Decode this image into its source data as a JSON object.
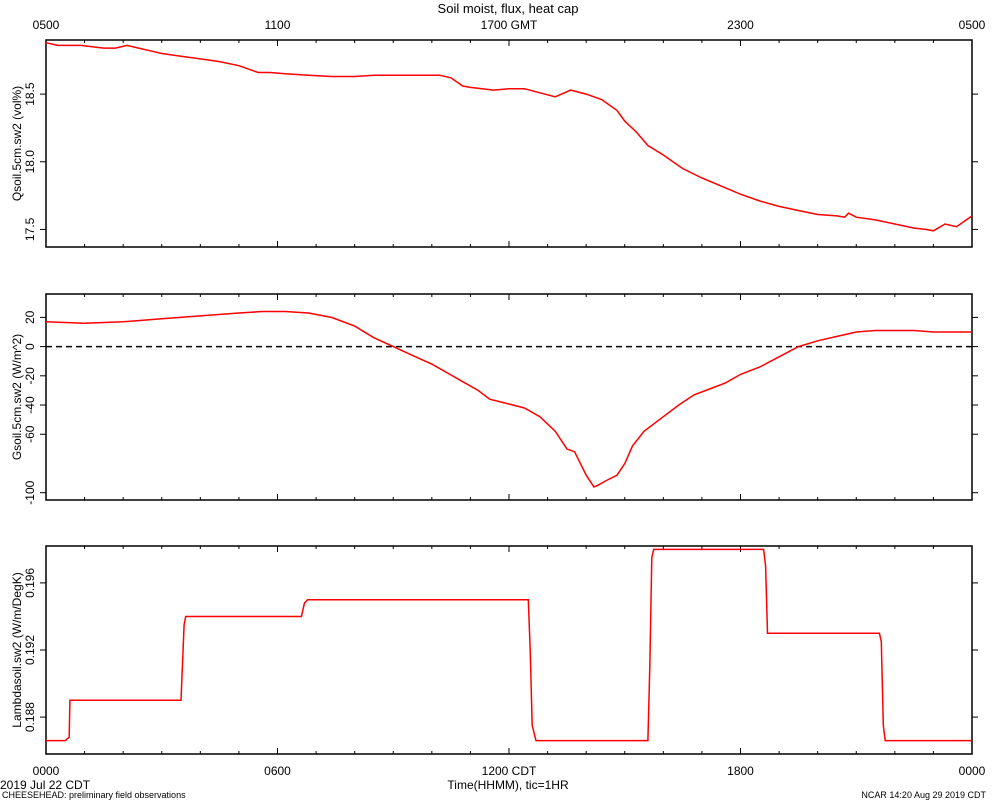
{
  "header": {
    "title": "Soil moist, flux, heat cap",
    "top_ticks": [
      "0500",
      "1100",
      "1700 GMT",
      "2300",
      "0500"
    ]
  },
  "footer": {
    "xlabel": "Time(HHMM), tic=1HR",
    "date": "2019 Jul 22 CDT",
    "project": "CHEESEHEAD: preliminary field observations",
    "credit": "NCAR 14:20 Aug 29 2019 CDT",
    "bottom_ticks": [
      "0000",
      "0600",
      "1200 CDT",
      "1800",
      "0000"
    ]
  },
  "colors": {
    "series": "#ff0000",
    "zero_line": "#000000"
  },
  "chart_data": [
    {
      "type": "line",
      "ylabel": "Qsoil.5cm.sw2 (vol%)",
      "xlim": [
        0,
        24
      ],
      "ylim": [
        17.37,
        18.9
      ],
      "yticks": [
        17.5,
        18.0,
        18.5
      ],
      "ytick_labels": [
        "17.5",
        "18.0",
        "18.5"
      ],
      "series": [
        {
          "x": [
            0,
            0.3,
            0.6,
            0.9,
            1.2,
            1.5,
            1.8,
            2.1,
            2.4,
            2.7,
            3.0,
            3.5,
            4.0,
            4.5,
            5.0,
            5.5,
            5.8,
            6.2,
            6.8,
            7.4,
            8.0,
            8.5,
            9.0,
            9.6,
            10.2,
            10.5,
            10.8,
            11.0,
            11.3,
            11.6,
            12.0,
            12.4,
            12.8,
            13.2,
            13.6,
            14.0,
            14.4,
            14.8,
            15.0,
            15.3,
            15.6,
            16.0,
            16.5,
            17.0,
            17.5,
            18.0,
            18.5,
            19.0,
            19.5,
            20.0,
            20.5,
            20.7,
            20.8,
            21.0,
            21.5,
            22.0,
            22.5,
            22.8,
            23.0,
            23.3,
            23.6,
            24.0
          ],
          "y": [
            18.88,
            18.86,
            18.86,
            18.86,
            18.85,
            18.84,
            18.84,
            18.86,
            18.84,
            18.82,
            18.8,
            18.78,
            18.76,
            18.74,
            18.71,
            18.66,
            18.66,
            18.65,
            18.64,
            18.63,
            18.63,
            18.64,
            18.64,
            18.64,
            18.64,
            18.62,
            18.56,
            18.55,
            18.54,
            18.53,
            18.54,
            18.54,
            18.51,
            18.48,
            18.53,
            18.5,
            18.46,
            18.38,
            18.3,
            18.22,
            18.12,
            18.05,
            17.95,
            17.88,
            17.82,
            17.76,
            17.71,
            17.67,
            17.64,
            17.61,
            17.6,
            17.59,
            17.62,
            17.59,
            17.57,
            17.54,
            17.51,
            17.5,
            17.49,
            17.54,
            17.52,
            17.6
          ]
        }
      ]
    },
    {
      "type": "line",
      "ylabel": "Gsoil.5cm.sw2 (W/m^2)",
      "xlim": [
        0,
        24
      ],
      "ylim": [
        -105,
        36
      ],
      "yticks": [
        -100,
        -60,
        -40,
        -20,
        0,
        20
      ],
      "ytick_labels": [
        "-100",
        "-60",
        "-40",
        "-20",
        "0",
        "20"
      ],
      "zero_line": true,
      "series": [
        {
          "x": [
            0,
            1,
            2,
            3,
            4,
            5,
            5.6,
            6.2,
            6.8,
            7.4,
            8.0,
            8.5,
            9.0,
            9.5,
            10.0,
            10.4,
            10.8,
            11.2,
            11.5,
            11.8,
            12.1,
            12.4,
            12.8,
            13.2,
            13.5,
            13.7,
            14.0,
            14.2,
            14.3,
            14.5,
            14.8,
            15.0,
            15.2,
            15.5,
            16.0,
            16.4,
            16.8,
            17.2,
            17.6,
            18.0,
            18.5,
            19.0,
            19.5,
            20.0,
            20.5,
            21.0,
            21.5,
            22.0,
            22.5,
            23.0,
            24.0
          ],
          "y": [
            17,
            16,
            17,
            19,
            21,
            23,
            24,
            24,
            23,
            20,
            14,
            6,
            0,
            -6,
            -12,
            -18,
            -24,
            -30,
            -36,
            -38,
            -40,
            -42,
            -48,
            -58,
            -70,
            -72,
            -88,
            -96,
            -95,
            -92,
            -88,
            -80,
            -68,
            -58,
            -48,
            -40,
            -33,
            -29,
            -25,
            -19,
            -14,
            -7,
            0,
            4,
            7,
            10,
            11,
            11,
            11,
            10,
            10
          ]
        }
      ]
    },
    {
      "type": "line",
      "ylabel": "Lambdasoil.sw2 (W/m/DegK)",
      "xlim": [
        0,
        24
      ],
      "ylim": [
        0.1858,
        0.1982
      ],
      "yticks": [
        0.188,
        0.192,
        0.196
      ],
      "ytick_labels": [
        "0.188",
        "0.192",
        "0.196"
      ],
      "series": [
        {
          "x": [
            0,
            0.5,
            0.6,
            0.62,
            3.5,
            3.58,
            3.62,
            6.62,
            6.7,
            6.78,
            12.5,
            12.55,
            12.6,
            12.7,
            15.6,
            15.65,
            15.7,
            15.75,
            18.6,
            18.65,
            18.7,
            18.75,
            21.6,
            21.65,
            21.7,
            21.75,
            24.0
          ],
          "y": [
            0.1866,
            0.1866,
            0.1868,
            0.189,
            0.189,
            0.1935,
            0.194,
            0.194,
            0.1948,
            0.195,
            0.195,
            0.192,
            0.1875,
            0.1866,
            0.1866,
            0.191,
            0.1975,
            0.198,
            0.198,
            0.197,
            0.193,
            0.193,
            0.193,
            0.1925,
            0.1875,
            0.1866,
            0.1866
          ]
        }
      ]
    }
  ]
}
